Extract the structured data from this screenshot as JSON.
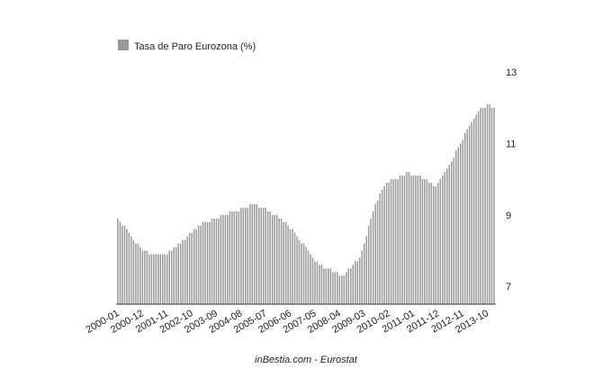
{
  "chart_data": {
    "type": "bar",
    "legend_position": "top-left",
    "footer": "inBestia.com - Eurostat",
    "categories": [
      "2000-01",
      null,
      null,
      null,
      null,
      null,
      null,
      null,
      null,
      null,
      null,
      "2000-12",
      null,
      null,
      null,
      null,
      null,
      null,
      null,
      null,
      null,
      null,
      "2001-11",
      null,
      null,
      null,
      null,
      null,
      null,
      null,
      null,
      null,
      null,
      "2002-10",
      null,
      null,
      null,
      null,
      null,
      null,
      null,
      null,
      null,
      null,
      "2003-09",
      null,
      null,
      null,
      null,
      null,
      null,
      null,
      null,
      null,
      null,
      "2004-08",
      null,
      null,
      null,
      null,
      null,
      null,
      null,
      null,
      null,
      null,
      "2005-07",
      null,
      null,
      null,
      null,
      null,
      null,
      null,
      null,
      null,
      null,
      "2006-06",
      null,
      null,
      null,
      null,
      null,
      null,
      null,
      null,
      null,
      null,
      "2007-05",
      null,
      null,
      null,
      null,
      null,
      null,
      null,
      null,
      null,
      null,
      "2008-04",
      null,
      null,
      null,
      null,
      null,
      null,
      null,
      null,
      null,
      null,
      "2009-03",
      null,
      null,
      null,
      null,
      null,
      null,
      null,
      null,
      null,
      null,
      "2010-02",
      null,
      null,
      null,
      null,
      null,
      null,
      null,
      null,
      null,
      null,
      "2011-01",
      null,
      null,
      null,
      null,
      null,
      null,
      null,
      null,
      null,
      null,
      "2011-12",
      null,
      null,
      null,
      null,
      null,
      null,
      null,
      null,
      null,
      null,
      "2012-11",
      null,
      null,
      null,
      null,
      null,
      null,
      null,
      null,
      null,
      null,
      "2013-10",
      null,
      null,
      null
    ],
    "series": [
      {
        "name": "Tasa de Paro Eurozona (%)",
        "color": "#999999",
        "values": [
          8.9,
          8.8,
          8.7,
          8.7,
          8.6,
          8.5,
          8.4,
          8.3,
          8.2,
          8.2,
          8.1,
          8.0,
          8.0,
          8.0,
          7.9,
          7.9,
          7.9,
          7.9,
          7.9,
          7.9,
          7.9,
          7.9,
          7.9,
          8.0,
          8.0,
          8.1,
          8.1,
          8.2,
          8.2,
          8.3,
          8.3,
          8.4,
          8.5,
          8.5,
          8.6,
          8.6,
          8.7,
          8.7,
          8.8,
          8.8,
          8.8,
          8.8,
          8.9,
          8.9,
          8.9,
          8.9,
          9.0,
          9.0,
          9.0,
          9.0,
          9.1,
          9.1,
          9.1,
          9.1,
          9.1,
          9.2,
          9.2,
          9.2,
          9.2,
          9.3,
          9.3,
          9.3,
          9.3,
          9.2,
          9.2,
          9.2,
          9.2,
          9.1,
          9.1,
          9.0,
          9.0,
          9.0,
          8.9,
          8.9,
          8.8,
          8.8,
          8.7,
          8.6,
          8.6,
          8.5,
          8.4,
          8.3,
          8.2,
          8.2,
          8.1,
          8.0,
          7.9,
          7.8,
          7.7,
          7.7,
          7.6,
          7.6,
          7.5,
          7.5,
          7.5,
          7.5,
          7.4,
          7.4,
          7.4,
          7.3,
          7.3,
          7.3,
          7.4,
          7.5,
          7.5,
          7.6,
          7.7,
          7.7,
          7.8,
          8.0,
          8.2,
          8.4,
          8.7,
          8.9,
          9.1,
          9.3,
          9.4,
          9.6,
          9.7,
          9.8,
          9.9,
          9.9,
          10.0,
          10.0,
          10.0,
          10.0,
          10.1,
          10.1,
          10.1,
          10.2,
          10.2,
          10.1,
          10.1,
          10.1,
          10.1,
          10.1,
          10.0,
          10.0,
          10.0,
          9.9,
          9.9,
          9.8,
          9.8,
          9.9,
          10.0,
          10.1,
          10.2,
          10.3,
          10.4,
          10.5,
          10.6,
          10.8,
          10.9,
          11.0,
          11.1,
          11.3,
          11.4,
          11.5,
          11.6,
          11.7,
          11.8,
          11.9,
          12.0,
          12.0,
          12.0,
          12.1,
          12.1,
          12.0,
          12.0
        ]
      }
    ],
    "ylim": [
      6.5,
      13
    ],
    "yticks": [
      7,
      9,
      11,
      13
    ],
    "grid": false
  }
}
